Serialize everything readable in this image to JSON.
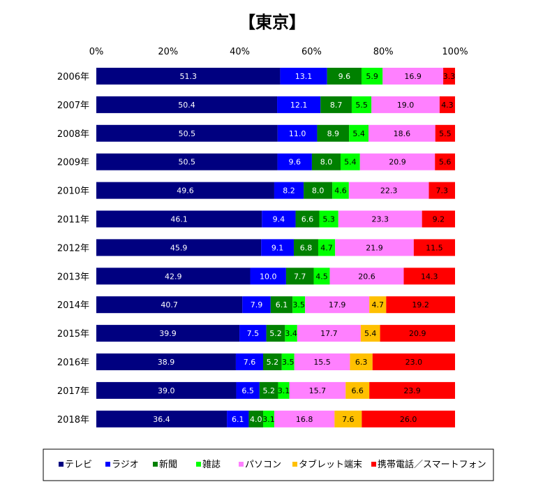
{
  "chart_data": {
    "type": "bar",
    "orientation": "horizontal",
    "stacked": "percent",
    "title": "【東京】",
    "xlim": [
      0,
      100
    ],
    "xticks": [
      "0%",
      "20%",
      "40%",
      "60%",
      "80%",
      "100%"
    ],
    "grid": false,
    "legend_position": "bottom",
    "categories": [
      "2006年",
      "2007年",
      "2008年",
      "2009年",
      "2010年",
      "2011年",
      "2012年",
      "2013年",
      "2014年",
      "2015年",
      "2016年",
      "2017年",
      "2018年"
    ],
    "series": [
      {
        "name": "テレビ",
        "color": "#000080",
        "label_color": "#ffffff",
        "values": [
          51.3,
          50.4,
          50.5,
          50.5,
          49.6,
          46.1,
          45.9,
          42.9,
          40.7,
          39.9,
          38.9,
          39.0,
          36.4
        ]
      },
      {
        "name": "ラジオ",
        "color": "#0000ff",
        "label_color": "#ffffff",
        "values": [
          13.1,
          12.1,
          11.0,
          9.6,
          8.2,
          9.4,
          9.1,
          10.0,
          7.9,
          7.5,
          7.6,
          6.5,
          6.1
        ]
      },
      {
        "name": "新聞",
        "color": "#008000",
        "label_color": "#ffffff",
        "values": [
          9.6,
          8.7,
          8.9,
          8.0,
          8.0,
          6.6,
          6.8,
          7.7,
          6.1,
          5.2,
          5.2,
          5.2,
          4.0
        ]
      },
      {
        "name": "雑誌",
        "color": "#00ff00",
        "label_color": "#000000",
        "values": [
          5.9,
          5.5,
          5.4,
          5.4,
          4.6,
          5.3,
          4.7,
          4.5,
          3.5,
          3.4,
          3.5,
          3.1,
          3.1
        ]
      },
      {
        "name": "パソコン",
        "color": "#ff80ff",
        "label_color": "#000000",
        "values": [
          16.9,
          19.0,
          18.6,
          20.9,
          22.3,
          23.3,
          21.9,
          20.6,
          17.9,
          17.7,
          15.5,
          15.7,
          16.8
        ]
      },
      {
        "name": "タブレット端末",
        "color": "#ffc000",
        "label_color": "#000000",
        "values": [
          null,
          null,
          null,
          null,
          null,
          null,
          null,
          null,
          4.7,
          5.4,
          6.3,
          6.6,
          7.6
        ]
      },
      {
        "name": "携帯電話／スマートフォン",
        "color": "#ff0000",
        "label_color": "#000000",
        "values": [
          3.3,
          4.3,
          5.5,
          5.6,
          7.3,
          9.2,
          11.5,
          14.3,
          19.2,
          20.9,
          23.0,
          23.9,
          26.0
        ]
      }
    ]
  }
}
